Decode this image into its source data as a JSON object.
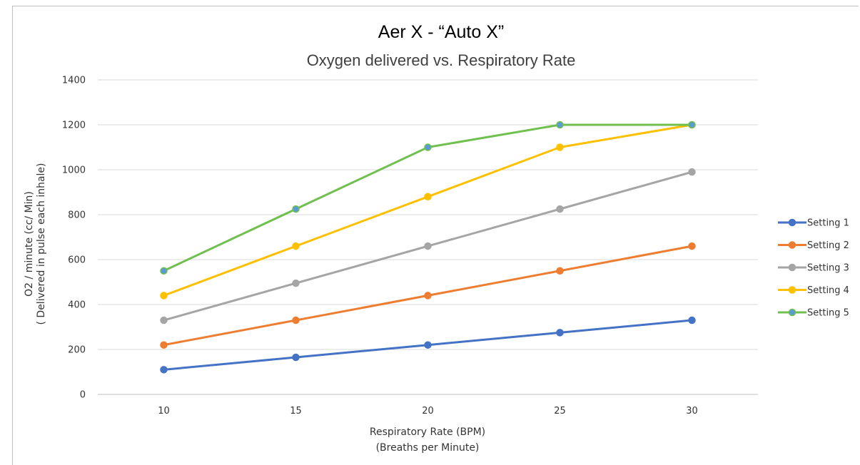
{
  "chart_data": {
    "type": "line",
    "title": "Aer X - “Auto X”",
    "subtitle": "Oxygen delivered vs. Respiratory Rate",
    "xlabel_lines": [
      "Respiratory Rate (BPM)",
      "(Breaths  per Minute)"
    ],
    "ylabel_lines": [
      "O2 / minute (cc/ Min)",
      "( Delivered in pulse each inhale)"
    ],
    "categories": [
      "10",
      "15",
      "20",
      "25",
      "30"
    ],
    "ylim": [
      0,
      1400
    ],
    "yticks": [
      "0",
      "200",
      "400",
      "600",
      "800",
      "1000",
      "1200",
      "1400"
    ],
    "grid": true,
    "legend_position": "right",
    "series": [
      {
        "name": "Setting 1",
        "color": "#4472c4",
        "values": [
          110,
          165,
          220,
          275,
          330
        ]
      },
      {
        "name": "Setting 2",
        "color": "#ed7d31",
        "values": [
          220,
          330,
          440,
          550,
          660
        ]
      },
      {
        "name": "Setting 3",
        "color": "#a5a5a5",
        "values": [
          330,
          495,
          660,
          825,
          990
        ]
      },
      {
        "name": "Setting 4",
        "color": "#ffc000",
        "values": [
          440,
          660,
          880,
          1100,
          1200
        ]
      },
      {
        "name": "Setting 5",
        "color": "#70c050",
        "marker_color": "#5b9bd5",
        "values": [
          550,
          825,
          1100,
          1200,
          1200
        ]
      }
    ]
  }
}
